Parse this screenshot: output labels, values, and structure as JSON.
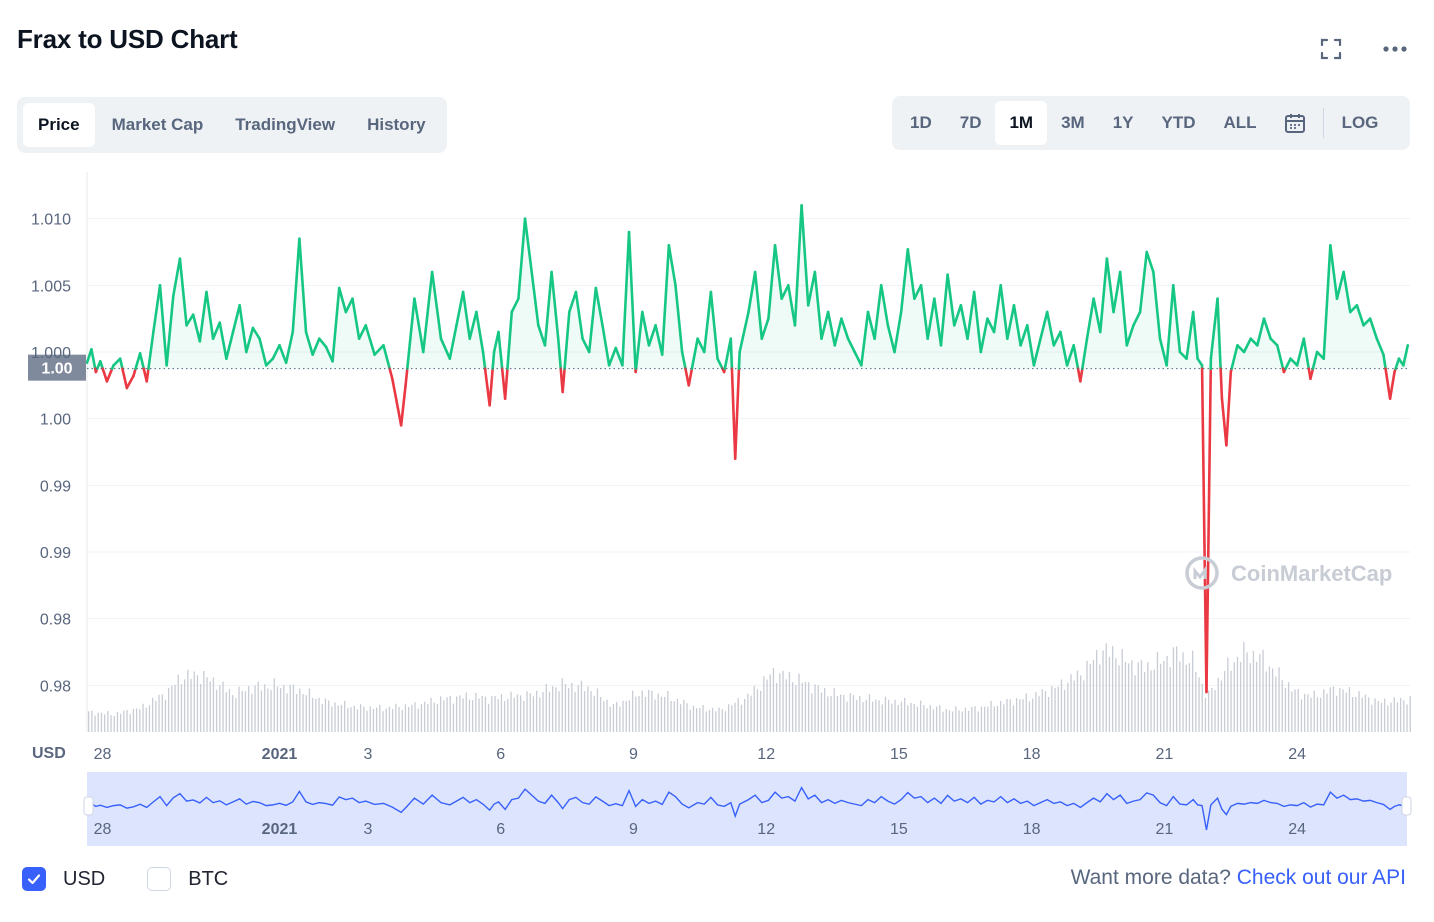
{
  "title": "Frax to USD Chart",
  "tabs": [
    {
      "label": "Price",
      "active": true
    },
    {
      "label": "Market Cap",
      "active": false
    },
    {
      "label": "TradingView",
      "active": false
    },
    {
      "label": "History",
      "active": false
    }
  ],
  "ranges": [
    {
      "label": "1D",
      "active": false
    },
    {
      "label": "7D",
      "active": false
    },
    {
      "label": "1M",
      "active": true
    },
    {
      "label": "3M",
      "active": false
    },
    {
      "label": "1Y",
      "active": false
    },
    {
      "label": "YTD",
      "active": false
    },
    {
      "label": "ALL",
      "active": false
    }
  ],
  "log_label": "LOG",
  "icons": {
    "fullscreen": "fullscreen-icon",
    "more": "more-icon",
    "calendar": "calendar-icon",
    "check": "check-icon",
    "watermark": "coinmarketcap-logo-icon"
  },
  "watermark_text": "CoinMarketCap",
  "currency_checks": [
    {
      "label": "USD",
      "checked": true
    },
    {
      "label": "BTC",
      "checked": false
    }
  ],
  "api_prompt": "Want more data?",
  "api_link": "Check out our API",
  "colors": {
    "up": "#16c784",
    "down": "#ea3943",
    "navigator_line": "#3861fb",
    "navigator_fill": "#dde4fd",
    "volume": "#c8ccd4",
    "accent": "#3861fb"
  },
  "chart_data": {
    "type": "line",
    "currency_label": "USD",
    "y_tick_labels": [
      "1.010",
      "1.005",
      "1.000",
      "1.00",
      "0.99",
      "0.99",
      "0.98",
      "0.98"
    ],
    "y_tick_values": [
      1.01,
      1.005,
      1.0,
      0.995,
      0.99,
      0.985,
      0.98,
      0.975
    ],
    "ylim": [
      0.9715,
      1.0135
    ],
    "reference_price": 0.99875,
    "reference_label": "1.00",
    "x_labels": [
      {
        "label": "28",
        "day": 1.25
      },
      {
        "label": "2021",
        "day": 5.25
      },
      {
        "label": "3",
        "day": 7.25
      },
      {
        "label": "6",
        "day": 10.25
      },
      {
        "label": "9",
        "day": 13.25
      },
      {
        "label": "12",
        "day": 16.25
      },
      {
        "label": "15",
        "day": 19.25
      },
      {
        "label": "18",
        "day": 22.25
      },
      {
        "label": "21",
        "day": 25.25
      },
      {
        "label": "24",
        "day": 28.25
      }
    ],
    "x_range_days": [
      0.9,
      30.8
    ],
    "price_series": [
      [
        0.9,
        0.9992
      ],
      [
        1.0,
        1.0002
      ],
      [
        1.1,
        0.9985
      ],
      [
        1.2,
        0.9993
      ],
      [
        1.35,
        0.9978
      ],
      [
        1.5,
        0.999
      ],
      [
        1.65,
        0.9995
      ],
      [
        1.8,
        0.9973
      ],
      [
        1.95,
        0.9982
      ],
      [
        2.1,
        0.9999
      ],
      [
        2.25,
        0.9978
      ],
      [
        2.4,
        1.0015
      ],
      [
        2.55,
        1.005
      ],
      [
        2.7,
        0.999
      ],
      [
        2.85,
        1.0042
      ],
      [
        3.0,
        1.007
      ],
      [
        3.15,
        1.002
      ],
      [
        3.3,
        1.0028
      ],
      [
        3.45,
        1.0008
      ],
      [
        3.6,
        1.0045
      ],
      [
        3.75,
        1.001
      ],
      [
        3.9,
        1.0022
      ],
      [
        4.05,
        0.9995
      ],
      [
        4.2,
        1.0015
      ],
      [
        4.35,
        1.0035
      ],
      [
        4.5,
        1.0
      ],
      [
        4.65,
        1.0018
      ],
      [
        4.8,
        1.001
      ],
      [
        4.95,
        0.999
      ],
      [
        5.1,
        0.9995
      ],
      [
        5.25,
        1.0005
      ],
      [
        5.4,
        0.9992
      ],
      [
        5.55,
        1.0015
      ],
      [
        5.7,
        1.0085
      ],
      [
        5.85,
        1.0015
      ],
      [
        6.0,
        0.9998
      ],
      [
        6.15,
        1.001
      ],
      [
        6.3,
        1.0004
      ],
      [
        6.45,
        0.9993
      ],
      [
        6.6,
        1.0048
      ],
      [
        6.75,
        1.003
      ],
      [
        6.9,
        1.004
      ],
      [
        7.05,
        1.001
      ],
      [
        7.2,
        1.002
      ],
      [
        7.4,
        0.9998
      ],
      [
        7.6,
        1.0005
      ],
      [
        7.8,
        0.998
      ],
      [
        8.0,
        0.9945
      ],
      [
        8.1,
        0.9975
      ],
      [
        8.3,
        1.004
      ],
      [
        8.5,
        1.0
      ],
      [
        8.7,
        1.006
      ],
      [
        8.9,
        1.001
      ],
      [
        9.1,
        0.9995
      ],
      [
        9.25,
        1.002
      ],
      [
        9.4,
        1.0045
      ],
      [
        9.55,
        1.001
      ],
      [
        9.7,
        1.003
      ],
      [
        9.85,
        1.0
      ],
      [
        10.0,
        0.996
      ],
      [
        10.1,
        1.0
      ],
      [
        10.2,
        1.0015
      ],
      [
        10.35,
        0.9965
      ],
      [
        10.5,
        1.003
      ],
      [
        10.65,
        1.004
      ],
      [
        10.8,
        1.01
      ],
      [
        10.95,
        1.006
      ],
      [
        11.1,
        1.002
      ],
      [
        11.25,
        1.0005
      ],
      [
        11.4,
        1.006
      ],
      [
        11.55,
        1.001
      ],
      [
        11.65,
        0.997
      ],
      [
        11.8,
        1.003
      ],
      [
        11.95,
        1.0045
      ],
      [
        12.1,
        1.001
      ],
      [
        12.25,
        1.0
      ],
      [
        12.4,
        1.0048
      ],
      [
        12.55,
        1.002
      ],
      [
        12.7,
        0.999
      ],
      [
        12.85,
        1.0003
      ],
      [
        13.0,
        0.999
      ],
      [
        13.15,
        1.009
      ],
      [
        13.3,
        0.9985
      ],
      [
        13.45,
        1.003
      ],
      [
        13.6,
        1.0005
      ],
      [
        13.75,
        1.002
      ],
      [
        13.9,
        0.9998
      ],
      [
        14.05,
        1.008
      ],
      [
        14.2,
        1.005
      ],
      [
        14.35,
        1.0
      ],
      [
        14.5,
        0.9975
      ],
      [
        14.7,
        1.001
      ],
      [
        14.85,
        1.0
      ],
      [
        15.0,
        1.0045
      ],
      [
        15.15,
        0.9995
      ],
      [
        15.3,
        0.9985
      ],
      [
        15.45,
        1.001
      ],
      [
        15.55,
        0.992
      ],
      [
        15.65,
        1.0
      ],
      [
        15.85,
        1.003
      ],
      [
        16.0,
        1.006
      ],
      [
        16.15,
        1.001
      ],
      [
        16.3,
        1.0025
      ],
      [
        16.45,
        1.008
      ],
      [
        16.6,
        1.004
      ],
      [
        16.75,
        1.005
      ],
      [
        16.9,
        1.002
      ],
      [
        17.05,
        1.011
      ],
      [
        17.2,
        1.0035
      ],
      [
        17.35,
        1.006
      ],
      [
        17.5,
        1.001
      ],
      [
        17.65,
        1.003
      ],
      [
        17.8,
        1.0005
      ],
      [
        17.95,
        1.0025
      ],
      [
        18.1,
        1.001
      ],
      [
        18.25,
        1.0
      ],
      [
        18.4,
        0.999
      ],
      [
        18.55,
        1.003
      ],
      [
        18.7,
        1.001
      ],
      [
        18.85,
        1.005
      ],
      [
        19.0,
        1.002
      ],
      [
        19.15,
        1.0
      ],
      [
        19.3,
        1.003
      ],
      [
        19.45,
        1.0077
      ],
      [
        19.6,
        1.004
      ],
      [
        19.75,
        1.005
      ],
      [
        19.9,
        1.001
      ],
      [
        20.05,
        1.004
      ],
      [
        20.2,
        1.0005
      ],
      [
        20.35,
        1.0058
      ],
      [
        20.5,
        1.002
      ],
      [
        20.65,
        1.0035
      ],
      [
        20.8,
        1.001
      ],
      [
        20.95,
        1.0045
      ],
      [
        21.1,
        1.0
      ],
      [
        21.25,
        1.0025
      ],
      [
        21.4,
        1.0015
      ],
      [
        21.55,
        1.005
      ],
      [
        21.7,
        1.001
      ],
      [
        21.85,
        1.0035
      ],
      [
        22.0,
        1.0005
      ],
      [
        22.15,
        1.002
      ],
      [
        22.3,
        0.999
      ],
      [
        22.45,
        1.001
      ],
      [
        22.6,
        1.003
      ],
      [
        22.75,
        1.0005
      ],
      [
        22.9,
        1.0015
      ],
      [
        23.05,
        0.999
      ],
      [
        23.2,
        1.0005
      ],
      [
        23.35,
        0.9978
      ],
      [
        23.5,
        1.001
      ],
      [
        23.65,
        1.004
      ],
      [
        23.8,
        1.0015
      ],
      [
        23.95,
        1.007
      ],
      [
        24.1,
        1.003
      ],
      [
        24.25,
        1.006
      ],
      [
        24.4,
        1.0005
      ],
      [
        24.55,
        1.002
      ],
      [
        24.7,
        1.003
      ],
      [
        24.85,
        1.0075
      ],
      [
        25.0,
        1.006
      ],
      [
        25.15,
        1.001
      ],
      [
        25.3,
        0.999
      ],
      [
        25.45,
        1.005
      ],
      [
        25.6,
        1.0
      ],
      [
        25.75,
        0.9995
      ],
      [
        25.9,
        1.003
      ],
      [
        26.0,
        0.9995
      ],
      [
        26.1,
        0.999
      ],
      [
        26.2,
        0.9745
      ],
      [
        26.3,
        0.9995
      ],
      [
        26.45,
        1.004
      ],
      [
        26.55,
        0.9965
      ],
      [
        26.65,
        0.993
      ],
      [
        26.75,
        0.9985
      ],
      [
        26.9,
        1.0005
      ],
      [
        27.05,
        1.0
      ],
      [
        27.2,
        1.001
      ],
      [
        27.35,
        1.0005
      ],
      [
        27.5,
        1.0025
      ],
      [
        27.65,
        1.001
      ],
      [
        27.8,
        1.0005
      ],
      [
        27.95,
        0.9985
      ],
      [
        28.1,
        0.9995
      ],
      [
        28.25,
        0.999
      ],
      [
        28.4,
        1.001
      ],
      [
        28.55,
        0.998
      ],
      [
        28.7,
        1.0
      ],
      [
        28.85,
        0.9995
      ],
      [
        29.0,
        1.008
      ],
      [
        29.15,
        1.004
      ],
      [
        29.3,
        1.006
      ],
      [
        29.45,
        1.003
      ],
      [
        29.6,
        1.0035
      ],
      [
        29.75,
        1.002
      ],
      [
        29.9,
        1.0025
      ],
      [
        30.05,
        1.001
      ],
      [
        30.2,
        0.9998
      ],
      [
        30.35,
        0.9965
      ],
      [
        30.45,
        0.9985
      ],
      [
        30.55,
        0.9995
      ],
      [
        30.65,
        0.999
      ],
      [
        30.75,
        1.0005
      ]
    ],
    "volume_series": [
      [
        0.9,
        0.2
      ],
      [
        1.5,
        0.18
      ],
      [
        2.1,
        0.24
      ],
      [
        2.7,
        0.4
      ],
      [
        3.0,
        0.55
      ],
      [
        3.4,
        0.58
      ],
      [
        3.8,
        0.5
      ],
      [
        4.2,
        0.38
      ],
      [
        4.6,
        0.45
      ],
      [
        5.2,
        0.47
      ],
      [
        5.7,
        0.42
      ],
      [
        6.3,
        0.3
      ],
      [
        7.0,
        0.25
      ],
      [
        7.6,
        0.24
      ],
      [
        8.3,
        0.27
      ],
      [
        8.9,
        0.33
      ],
      [
        9.5,
        0.36
      ],
      [
        10.0,
        0.34
      ],
      [
        10.5,
        0.36
      ],
      [
        11.0,
        0.38
      ],
      [
        11.6,
        0.48
      ],
      [
        12.2,
        0.45
      ],
      [
        12.8,
        0.26
      ],
      [
        13.4,
        0.4
      ],
      [
        14.0,
        0.36
      ],
      [
        14.6,
        0.25
      ],
      [
        15.2,
        0.22
      ],
      [
        15.8,
        0.35
      ],
      [
        16.4,
        0.6
      ],
      [
        17.0,
        0.52
      ],
      [
        17.6,
        0.4
      ],
      [
        18.2,
        0.35
      ],
      [
        18.8,
        0.32
      ],
      [
        19.4,
        0.3
      ],
      [
        19.8,
        0.27
      ],
      [
        20.4,
        0.22
      ],
      [
        21.0,
        0.24
      ],
      [
        21.6,
        0.3
      ],
      [
        22.2,
        0.35
      ],
      [
        22.8,
        0.45
      ],
      [
        23.4,
        0.6
      ],
      [
        23.8,
        0.82
      ],
      [
        24.1,
        0.8
      ],
      [
        24.4,
        0.7
      ],
      [
        24.8,
        0.65
      ],
      [
        25.2,
        0.72
      ],
      [
        25.5,
        0.8
      ],
      [
        25.9,
        0.7
      ],
      [
        26.2,
        0.35
      ],
      [
        26.6,
        0.62
      ],
      [
        27.0,
        0.8
      ],
      [
        27.4,
        0.76
      ],
      [
        27.8,
        0.58
      ],
      [
        28.2,
        0.4
      ],
      [
        28.6,
        0.36
      ],
      [
        29.1,
        0.44
      ],
      [
        29.6,
        0.38
      ],
      [
        30.1,
        0.3
      ],
      [
        30.8,
        0.33
      ]
    ]
  }
}
